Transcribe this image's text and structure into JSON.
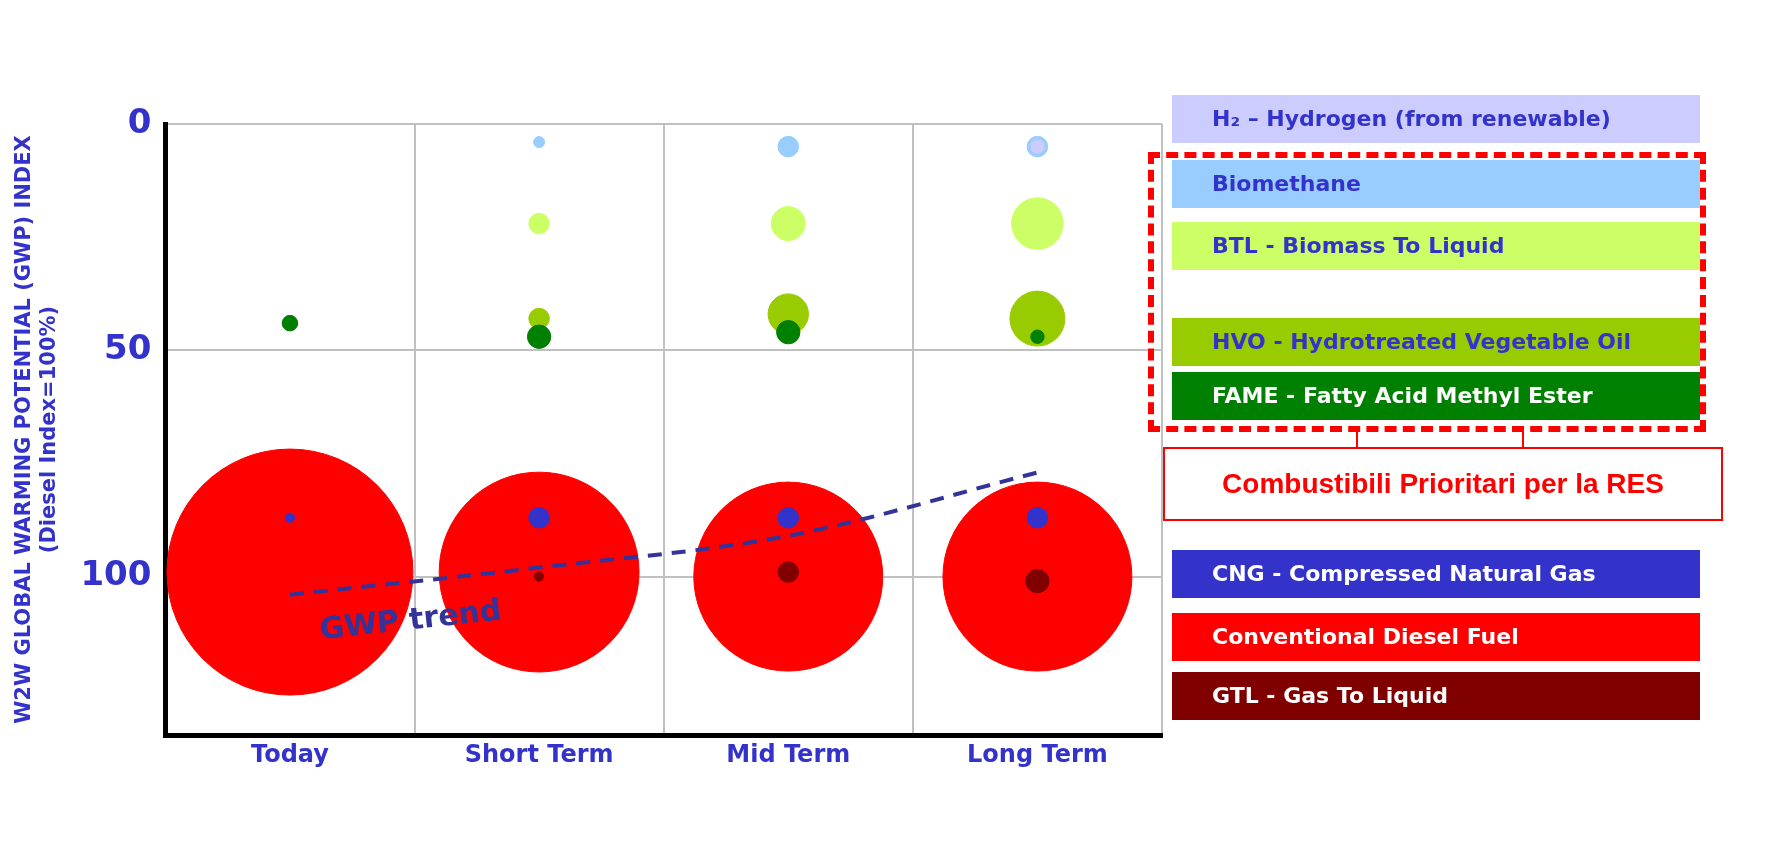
{
  "chart_data": {
    "type": "bubble",
    "ylabel": "W2W GLOBAL WARMING POTENTIAL (GWP) INDEX\n(Diesel Index=100%)",
    "categories": [
      "Today",
      "Short Term",
      "Mid Term",
      "Long Term"
    ],
    "ylim": [
      135,
      0
    ],
    "yticks": [
      0,
      50,
      100
    ],
    "grid": true,
    "legend": "right",
    "series": [
      {
        "name": "H₂ – Hydrogen (from renewable)",
        "color": "#ccccff",
        "values": [
          null,
          null,
          null,
          5
        ],
        "sizes": [
          null,
          null,
          null,
          0.003
        ]
      },
      {
        "name": "Biomethane",
        "color": "#99ccff",
        "values": [
          null,
          4,
          5,
          5
        ],
        "sizes": [
          null,
          0.002,
          0.007,
          0.007
        ]
      },
      {
        "name": "BTL - Biomass To Liquid",
        "color": "#ccff66",
        "values": [
          null,
          22,
          22,
          22
        ],
        "sizes": [
          null,
          0.007,
          0.019,
          0.044
        ]
      },
      {
        "name": "HVO - Hydrotreated Vegetable Oil",
        "color": "#99cc00",
        "values": [
          null,
          43,
          42,
          43
        ],
        "sizes": [
          null,
          0.007,
          0.027,
          0.05
        ]
      },
      {
        "name": "FAME - Fatty Acid Methyl Ester",
        "color": "#008000",
        "values": [
          44,
          47,
          46,
          47
        ],
        "sizes": [
          0.004,
          0.009,
          0.009,
          0.003
        ]
      },
      {
        "name": "CNG - Compressed Natural Gas",
        "color": "#3333cc",
        "values": [
          87,
          87,
          87,
          87
        ],
        "sizes": [
          0.0014,
          0.007,
          0.007,
          0.007
        ]
      },
      {
        "name": "Conventional Diesel Fuel",
        "color": "#ff0000",
        "values": [
          99,
          99,
          100,
          100
        ],
        "sizes": [
          1,
          0.66,
          0.59,
          0.59
        ]
      },
      {
        "name": "GTL - Gas To Liquid",
        "color": "#800000",
        "values": [
          null,
          100,
          99,
          101
        ],
        "sizes": [
          null,
          0.0014,
          0.007,
          0.009
        ]
      },
      {
        "name": "GWP trend",
        "type": "line",
        "color": "#333399",
        "line_style": "dashed",
        "marker": "none",
        "values": [
          104,
          98,
          91,
          77
        ]
      }
    ],
    "annotations": [
      "Combustibili Prioritari per la RES"
    ]
  }
}
